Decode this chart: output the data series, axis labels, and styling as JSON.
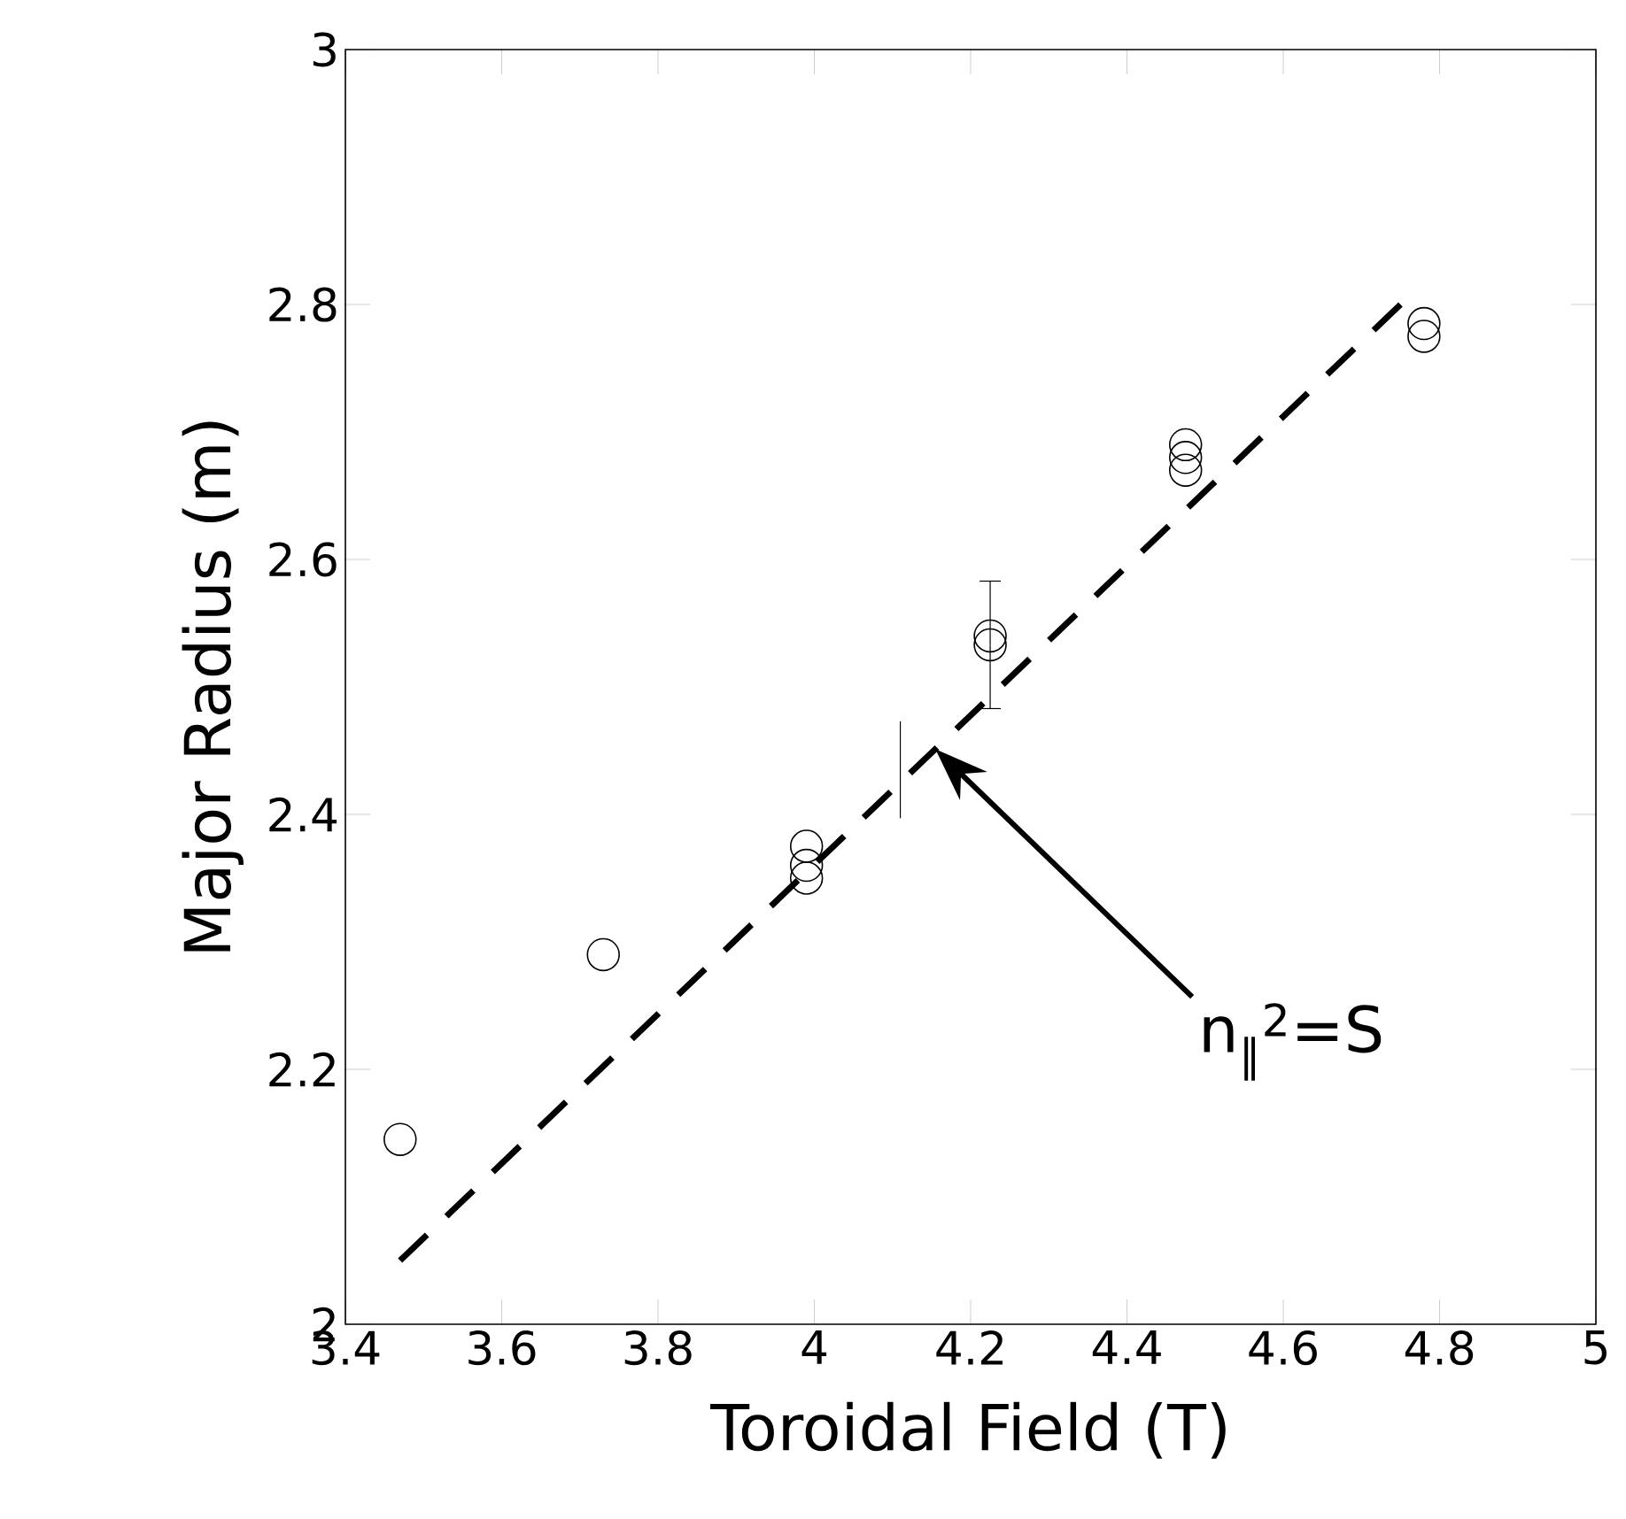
{
  "chart_data": {
    "type": "scatter",
    "xlabel": "Toroidal Field (T)",
    "ylabel": "Major Radius (m)",
    "xlim": [
      3.4,
      5
    ],
    "ylim": [
      2,
      3
    ],
    "xticks": [
      3.4,
      3.6,
      3.8,
      4,
      4.2,
      4.4,
      4.6,
      4.8,
      5
    ],
    "yticks": [
      2,
      2.2,
      2.4,
      2.6,
      2.8,
      3
    ],
    "grid": false,
    "series": [
      {
        "type": "scatter",
        "marker": "circle",
        "color": "#000000",
        "x": [
          3.47,
          3.73,
          3.99,
          3.99,
          3.99,
          4.225,
          4.225,
          4.475,
          4.475,
          4.475,
          4.78,
          4.78
        ],
        "values": [
          2.145,
          2.29,
          2.375,
          2.36,
          2.35,
          2.54,
          2.533,
          2.69,
          2.68,
          2.67,
          2.785,
          2.775
        ],
        "errors": [
          null,
          null,
          null,
          null,
          null,
          null,
          0.05,
          null,
          null,
          null,
          null,
          null
        ]
      },
      {
        "type": "line",
        "marker": "none",
        "line_style": "solid",
        "color": "#000000",
        "x": [
          4.11,
          4.11
        ],
        "values": [
          2.397,
          2.473
        ]
      },
      {
        "type": "line",
        "marker": "none",
        "line_style": "dashed",
        "color": "#000000",
        "x": [
          3.47,
          4.75
        ],
        "values": [
          2.05,
          2.8
        ]
      }
    ],
    "annotations": [
      "n$_{∥}$$^{2}$=S"
    ]
  }
}
